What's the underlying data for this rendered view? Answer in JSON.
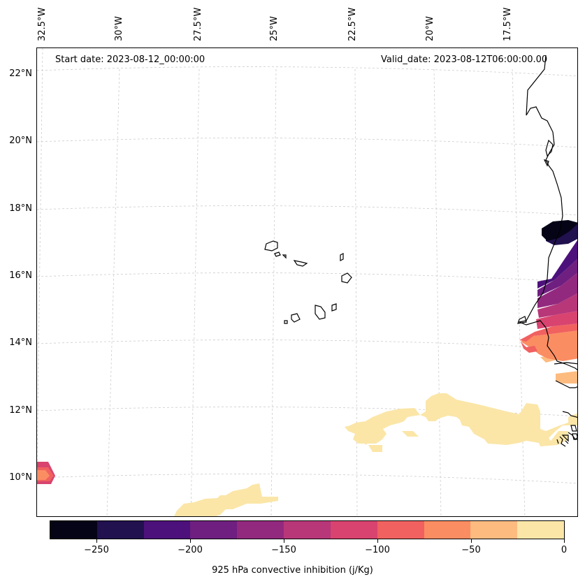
{
  "header": {
    "start_date": "Start date: 2023-08-12_00:00:00",
    "valid_date": "Valid_date: 2023-08-12T06:00:00.00"
  },
  "axes": {
    "lon_labels": [
      "32.5°W",
      "30°W",
      "27.5°W",
      "25°W",
      "22.5°W",
      "20°W",
      "17.5°W"
    ],
    "lat_labels": [
      "22°N",
      "20°N",
      "18°N",
      "16°N",
      "14°N",
      "12°N",
      "10°N"
    ]
  },
  "colorbar": {
    "label": "925 hPa convective inhibition (j/Kg)",
    "ticks": [
      "−250",
      "−200",
      "−150",
      "−100",
      "−50",
      "0"
    ],
    "levels": [
      -275,
      -250,
      -225,
      -200,
      -175,
      -150,
      -125,
      -100,
      -75,
      -50,
      -25,
      0
    ],
    "colors": [
      "#050417",
      "#21114e",
      "#4d117b",
      "#6f1f80",
      "#93297f",
      "#b73779",
      "#d8446f",
      "#f06160",
      "#fb8d62",
      "#fdbb80",
      "#fbe6a8"
    ]
  },
  "colors": {
    "coastline": "#000000",
    "gridline": "#cccccc",
    "frame": "#000000"
  }
}
